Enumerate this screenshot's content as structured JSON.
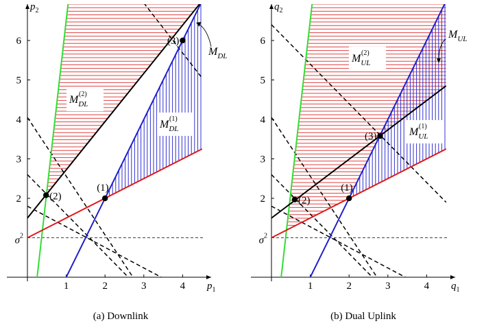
{
  "chart_data": [
    {
      "type": "line",
      "caption": "(a) Downlink",
      "xlabel": "p",
      "xlabel_sub": "1",
      "ylabel": "p",
      "ylabel_sub": "2",
      "xlim": [
        -0.5,
        4.7
      ],
      "ylim": [
        -0.2,
        6.95
      ],
      "x_ticks": [
        "1",
        "2",
        "3",
        "4"
      ],
      "y_ticks": [
        "2",
        "3",
        "4",
        "5",
        "6"
      ],
      "sigma_label": "σ",
      "sigma_sup": "2",
      "sigma_level": 1,
      "lines": [
        {
          "name": "green",
          "color": "#33dd33",
          "points": [
            [
              0.25,
              0
            ],
            [
              1.05,
              6.95
            ]
          ]
        },
        {
          "name": "blue",
          "color": "#1f1fcc",
          "points": [
            [
              1,
              0
            ],
            [
              4.5,
              7.0
            ]
          ]
        },
        {
          "name": "red",
          "color": "#e01818",
          "points": [
            [
              0,
              1.0
            ],
            [
              4.5,
              3.25
            ]
          ]
        },
        {
          "name": "black",
          "color": "#000000",
          "points": [
            [
              0,
              1.5
            ],
            [
              4.5,
              7.0
            ]
          ]
        }
      ],
      "dashed_lines": [
        {
          "points": [
            [
              0,
              4.05
            ],
            [
              2.72,
              0
            ]
          ]
        },
        {
          "points": [
            [
              0,
              2.6
            ],
            [
              2.6,
              0
            ]
          ]
        },
        {
          "points": [
            [
              0,
              1.8
            ],
            [
              3.45,
              0
            ]
          ]
        },
        {
          "points": [
            [
              3.0,
              6.95
            ],
            [
              4.5,
              5.05
            ]
          ]
        }
      ],
      "points": [
        {
          "label": "(1)",
          "x": 2.0,
          "y": 2.0
        },
        {
          "label": "(2)",
          "x": 0.48,
          "y": 2.08
        },
        {
          "label": "(3)",
          "x": 4.0,
          "y": 6.0
        }
      ],
      "regions": [
        {
          "name": "M",
          "sub": "DL",
          "sup": "(2)",
          "hatch": "horizontal",
          "color": "#e04040"
        },
        {
          "name": "M",
          "sub": "DL",
          "sup": "(1)",
          "hatch": "vertical",
          "color": "#3030d0"
        }
      ],
      "callout": {
        "name": "M",
        "sub": "DL"
      }
    },
    {
      "type": "line",
      "caption": "(b) Dual Uplink",
      "xlabel": "q",
      "xlabel_sub": "1",
      "ylabel": "q",
      "ylabel_sub": "2",
      "xlim": [
        -0.5,
        4.7
      ],
      "ylim": [
        -0.2,
        6.95
      ],
      "x_ticks": [
        "1",
        "2",
        "3",
        "4"
      ],
      "y_ticks": [
        "2",
        "3",
        "4",
        "5",
        "6"
      ],
      "sigma_label": "σ",
      "sigma_sup": "2",
      "sigma_level": 1,
      "lines": [
        {
          "name": "green",
          "color": "#33dd33",
          "points": [
            [
              0.25,
              0
            ],
            [
              1.05,
              6.95
            ]
          ]
        },
        {
          "name": "blue",
          "color": "#1f1fcc",
          "points": [
            [
              1,
              0
            ],
            [
              4.5,
              7.0
            ]
          ]
        },
        {
          "name": "red",
          "color": "#e01818",
          "points": [
            [
              0,
              1.0
            ],
            [
              4.5,
              3.25
            ]
          ]
        },
        {
          "name": "black",
          "color": "#000000",
          "points": [
            [
              0,
              1.5
            ],
            [
              4.5,
              4.85
            ]
          ]
        }
      ],
      "dashed_lines": [
        {
          "points": [
            [
              0,
              6.4
            ],
            [
              4.5,
              1.9
            ]
          ]
        },
        {
          "points": [
            [
              0,
              4.05
            ],
            [
              2.72,
              0
            ]
          ]
        },
        {
          "points": [
            [
              0,
              2.6
            ],
            [
              2.6,
              0
            ]
          ]
        },
        {
          "points": [
            [
              0,
              1.8
            ],
            [
              3.45,
              0
            ]
          ]
        }
      ],
      "points": [
        {
          "label": "(1)",
          "x": 2.0,
          "y": 2.0
        },
        {
          "label": "(2)",
          "x": 0.6,
          "y": 1.97
        },
        {
          "label": "(3)",
          "x": 2.8,
          "y": 3.58
        }
      ],
      "regions": [
        {
          "name": "M",
          "sub": "UL",
          "sup": "(2)",
          "hatch": "horizontal",
          "color": "#e04040"
        },
        {
          "name": "M",
          "sub": "UL",
          "sup": "(1)",
          "hatch": "vertical",
          "color": "#3030d0"
        }
      ],
      "callout": {
        "name": "M",
        "sub": "UL"
      }
    }
  ]
}
